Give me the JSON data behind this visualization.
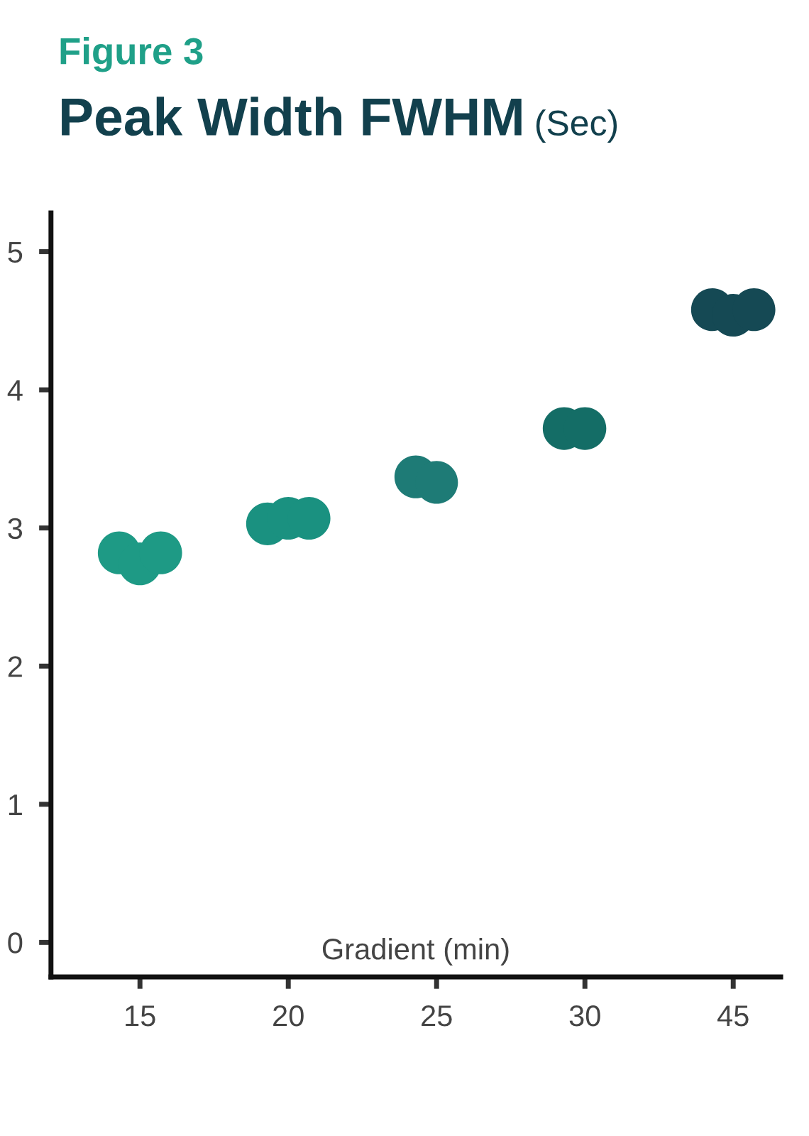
{
  "chart_data": {
    "type": "scatter",
    "title": "Figure 3",
    "subtitle": "Peak Width FWHM",
    "ylabel": "(Sec)",
    "xlabel": "Gradient (min)",
    "categories": [
      "15",
      "20",
      "25",
      "30",
      "45"
    ],
    "series": [
      {
        "values": [
          2.82,
          3.03,
          3.37,
          3.72,
          4.58
        ],
        "colors": [
          "#1e9a85",
          "#1a9180",
          "#1e7b76",
          "#146d66",
          "#154954"
        ]
      },
      {
        "values": [
          2.74,
          3.07,
          3.33,
          3.72,
          4.54
        ],
        "colors": [
          "#1e9a85",
          "#1a9180",
          "#1e7b76",
          "#146d66",
          "#154954"
        ]
      },
      {
        "values": [
          2.82,
          3.07,
          null,
          null,
          4.58
        ],
        "colors": [
          "#1e9a85",
          "#1a9180",
          "#1e7b76",
          "#146d66",
          "#154954"
        ]
      }
    ],
    "ylim": [
      -0.25,
      5.28
    ],
    "yticks": [
      0,
      1,
      2,
      3,
      4,
      5
    ],
    "grid": false,
    "marker": "circle"
  }
}
